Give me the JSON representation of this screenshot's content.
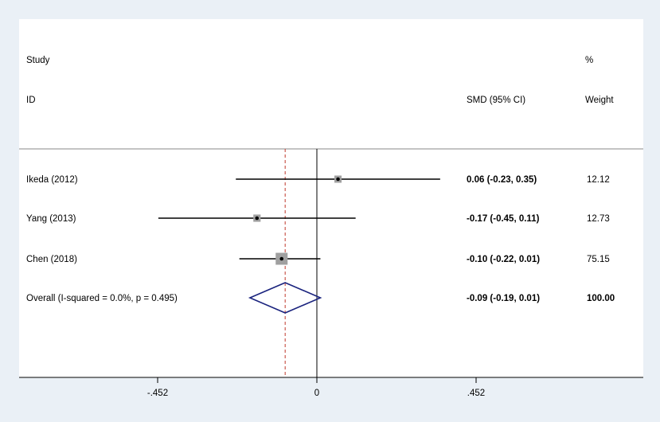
{
  "chart_data": {
    "type": "forest",
    "headers": {
      "study_line1": "Study",
      "study_line2": "ID",
      "effect": "SMD (95% CI)",
      "weight_line1": "%",
      "weight_line2": "Weight"
    },
    "studies": [
      {
        "label": "Ikeda (2012)",
        "smd": 0.06,
        "lower": -0.23,
        "upper": 0.35,
        "ci_text": "0.06 (-0.23, 0.35)",
        "weight_text": "12.12",
        "weight": 12.12
      },
      {
        "label": "Yang (2013)",
        "smd": -0.17,
        "lower": -0.45,
        "upper": 0.11,
        "ci_text": "-0.17 (-0.45, 0.11)",
        "weight_text": "12.73",
        "weight": 12.73
      },
      {
        "label": "Chen (2018)",
        "smd": -0.1,
        "lower": -0.22,
        "upper": 0.01,
        "ci_text": "-0.10 (-0.22, 0.01)",
        "weight_text": "75.15",
        "weight": 75.15
      }
    ],
    "overall": {
      "label": "Overall  (I-squared = 0.0%, p = 0.495)",
      "smd": -0.09,
      "lower": -0.19,
      "upper": 0.01,
      "ci_text": "-0.09 (-0.19, 0.01)",
      "weight_text": "100.00"
    },
    "x_ticks": [
      {
        "value": -0.452,
        "label": "-.452"
      },
      {
        "value": 0,
        "label": "0"
      },
      {
        "value": 0.452,
        "label": ".452"
      }
    ],
    "xlim": [
      -0.452,
      0.452
    ],
    "null_line": 0,
    "reference_line": -0.09,
    "colors": {
      "background": "#eaf0f6",
      "panel": "#ffffff",
      "line": "#000000",
      "diamond": "#1a237e",
      "reference": "#c0392b",
      "weight_box": "#a0a0a0"
    }
  }
}
